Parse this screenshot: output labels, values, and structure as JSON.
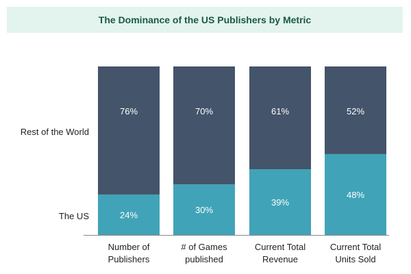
{
  "chart_data": {
    "type": "bar",
    "stacked": true,
    "title": "The Dominance of the US Publishers by Metric",
    "categories": [
      [
        "Number of",
        "Publishers"
      ],
      [
        "# of Games",
        "published"
      ],
      [
        "Current Total",
        "Revenue"
      ],
      [
        "Current Total",
        "Units Sold"
      ]
    ],
    "series": [
      {
        "name": "The US",
        "values": [
          24,
          30,
          39,
          48
        ],
        "labels": [
          "24%",
          "30%",
          "39%",
          "48%"
        ],
        "color": "#41a3b7"
      },
      {
        "name": "Rest of the World",
        "values": [
          76,
          70,
          61,
          52
        ],
        "labels": [
          "76%",
          "70%",
          "61%",
          "52%"
        ],
        "color": "#44546a"
      }
    ],
    "ylim": [
      0,
      100
    ],
    "grid": false,
    "legend": "left-row-labels",
    "banner_color": "#e3f3ee",
    "title_color": "#1b5a45"
  }
}
